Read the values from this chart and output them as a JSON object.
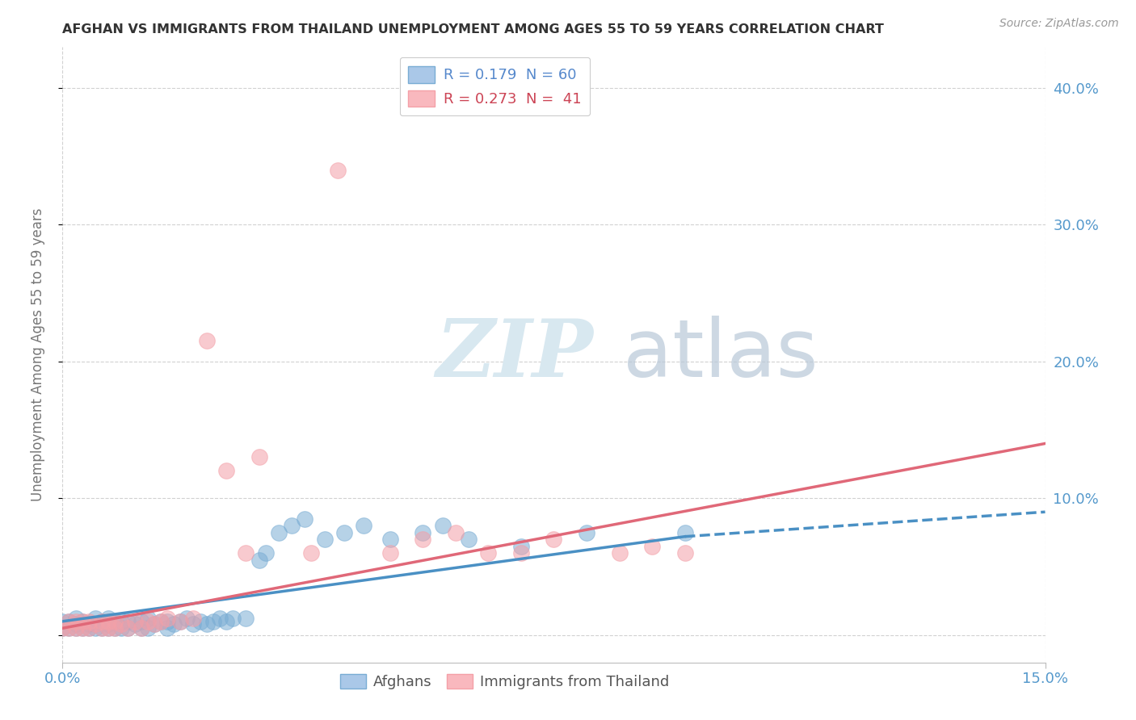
{
  "title": "AFGHAN VS IMMIGRANTS FROM THAILAND UNEMPLOYMENT AMONG AGES 55 TO 59 YEARS CORRELATION CHART",
  "source": "Source: ZipAtlas.com",
  "ylabel": "Unemployment Among Ages 55 to 59 years",
  "xlim": [
    0.0,
    0.15
  ],
  "ylim": [
    -0.02,
    0.43
  ],
  "yaxis_ticks": [
    0.0,
    0.1,
    0.2,
    0.3,
    0.4
  ],
  "yaxis_labels": [
    "",
    "10.0%",
    "20.0%",
    "30.0%",
    "40.0%"
  ],
  "xtick_labels": [
    "0.0%",
    "15.0%"
  ],
  "xtick_positions": [
    0.0,
    0.15
  ],
  "afghan_color": "#7aadd4",
  "thailand_color": "#f4a0a8",
  "afghan_line_color": "#4a90c4",
  "thailand_line_color": "#e06878",
  "watermark_zip": "ZIP",
  "watermark_atlas": "atlas",
  "background_color": "#ffffff",
  "grid_color": "#cccccc",
  "title_color": "#333333",
  "tick_color": "#5599cc",
  "legend_text_r1": "R = 0.179  N = 60",
  "legend_text_r2": "R = 0.273  N =  41",
  "bottom_legend_afghans": "Afghans",
  "bottom_legend_thailand": "Immigrants from Thailand",
  "afghan_x": [
    0.0,
    0.0,
    0.001,
    0.001,
    0.002,
    0.002,
    0.002,
    0.003,
    0.003,
    0.004,
    0.004,
    0.005,
    0.005,
    0.005,
    0.006,
    0.006,
    0.007,
    0.007,
    0.007,
    0.008,
    0.008,
    0.009,
    0.009,
    0.01,
    0.01,
    0.011,
    0.012,
    0.012,
    0.013,
    0.013,
    0.014,
    0.015,
    0.016,
    0.016,
    0.017,
    0.018,
    0.019,
    0.02,
    0.021,
    0.022,
    0.023,
    0.024,
    0.025,
    0.026,
    0.028,
    0.03,
    0.031,
    0.033,
    0.035,
    0.037,
    0.04,
    0.043,
    0.046,
    0.05,
    0.055,
    0.058,
    0.062,
    0.07,
    0.08,
    0.095
  ],
  "afghan_y": [
    0.005,
    0.01,
    0.005,
    0.01,
    0.005,
    0.008,
    0.012,
    0.005,
    0.01,
    0.005,
    0.008,
    0.005,
    0.008,
    0.012,
    0.005,
    0.01,
    0.005,
    0.008,
    0.012,
    0.005,
    0.01,
    0.005,
    0.01,
    0.005,
    0.01,
    0.008,
    0.005,
    0.01,
    0.005,
    0.012,
    0.008,
    0.01,
    0.005,
    0.01,
    0.008,
    0.01,
    0.012,
    0.008,
    0.01,
    0.008,
    0.01,
    0.012,
    0.01,
    0.012,
    0.012,
    0.055,
    0.06,
    0.075,
    0.08,
    0.085,
    0.07,
    0.075,
    0.08,
    0.07,
    0.075,
    0.08,
    0.07,
    0.065,
    0.075,
    0.075
  ],
  "thailand_x": [
    0.0,
    0.001,
    0.001,
    0.002,
    0.002,
    0.003,
    0.003,
    0.004,
    0.004,
    0.005,
    0.006,
    0.006,
    0.007,
    0.007,
    0.008,
    0.008,
    0.009,
    0.01,
    0.011,
    0.012,
    0.013,
    0.014,
    0.015,
    0.016,
    0.018,
    0.02,
    0.022,
    0.025,
    0.028,
    0.03,
    0.038,
    0.042,
    0.05,
    0.055,
    0.06,
    0.065,
    0.07,
    0.075,
    0.085,
    0.09,
    0.095
  ],
  "thailand_y": [
    0.005,
    0.005,
    0.01,
    0.005,
    0.01,
    0.005,
    0.01,
    0.005,
    0.01,
    0.008,
    0.005,
    0.01,
    0.005,
    0.01,
    0.005,
    0.01,
    0.008,
    0.005,
    0.01,
    0.005,
    0.01,
    0.008,
    0.01,
    0.012,
    0.01,
    0.012,
    0.215,
    0.12,
    0.06,
    0.13,
    0.06,
    0.34,
    0.06,
    0.07,
    0.075,
    0.06,
    0.06,
    0.07,
    0.06,
    0.065,
    0.06
  ],
  "trendline_afghan_x0": 0.0,
  "trendline_afghan_y0": 0.01,
  "trendline_afghan_x1": 0.095,
  "trendline_afghan_y1": 0.072,
  "trendline_afghan_dashed_x0": 0.095,
  "trendline_afghan_dashed_y0": 0.072,
  "trendline_afghan_dashed_x1": 0.15,
  "trendline_afghan_dashed_y1": 0.09,
  "trendline_thailand_x0": 0.0,
  "trendline_thailand_y0": 0.005,
  "trendline_thailand_x1": 0.15,
  "trendline_thailand_y1": 0.14
}
